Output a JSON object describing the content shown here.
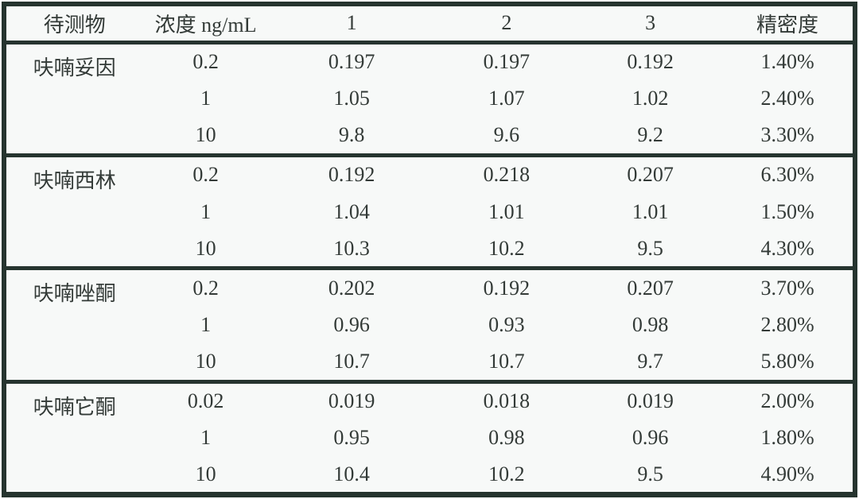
{
  "colors": {
    "border": "#26342f",
    "table_background": "#f7f9f8",
    "text": "#333a37",
    "page_background": "#ffffff"
  },
  "table": {
    "headers": {
      "analyte": "待测物",
      "concentration": "浓度 ng/mL",
      "rep1": "1",
      "rep2": "2",
      "rep3": "3",
      "precision": "精密度"
    },
    "groups": [
      {
        "analyte": "呋喃妥因",
        "rows": [
          {
            "concentration": "0.2",
            "rep1": "0.197",
            "rep2": "0.197",
            "rep3": "0.192",
            "precision": "1.40%"
          },
          {
            "concentration": "1",
            "rep1": "1.05",
            "rep2": "1.07",
            "rep3": "1.02",
            "precision": "2.40%"
          },
          {
            "concentration": "10",
            "rep1": "9.8",
            "rep2": "9.6",
            "rep3": "9.2",
            "precision": "3.30%"
          }
        ]
      },
      {
        "analyte": "呋喃西林",
        "rows": [
          {
            "concentration": "0.2",
            "rep1": "0.192",
            "rep2": "0.218",
            "rep3": "0.207",
            "precision": "6.30%"
          },
          {
            "concentration": "1",
            "rep1": "1.04",
            "rep2": "1.01",
            "rep3": "1.01",
            "precision": "1.50%"
          },
          {
            "concentration": "10",
            "rep1": "10.3",
            "rep2": "10.2",
            "rep3": "9.5",
            "precision": "4.30%"
          }
        ]
      },
      {
        "analyte": "呋喃唑酮",
        "rows": [
          {
            "concentration": "0.2",
            "rep1": "0.202",
            "rep2": "0.192",
            "rep3": "0.207",
            "precision": "3.70%"
          },
          {
            "concentration": "1",
            "rep1": "0.96",
            "rep2": "0.93",
            "rep3": "0.98",
            "precision": "2.80%"
          },
          {
            "concentration": "10",
            "rep1": "10.7",
            "rep2": "10.7",
            "rep3": "9.7",
            "precision": "5.80%"
          }
        ]
      },
      {
        "analyte": "呋喃它酮",
        "rows": [
          {
            "concentration": "0.02",
            "rep1": "0.019",
            "rep2": "0.018",
            "rep3": "0.019",
            "precision": "2.00%"
          },
          {
            "concentration": "1",
            "rep1": "0.95",
            "rep2": "0.98",
            "rep3": "0.96",
            "precision": "1.80%"
          },
          {
            "concentration": "10",
            "rep1": "10.4",
            "rep2": "10.2",
            "rep3": "9.5",
            "precision": "4.90%"
          }
        ]
      }
    ]
  }
}
